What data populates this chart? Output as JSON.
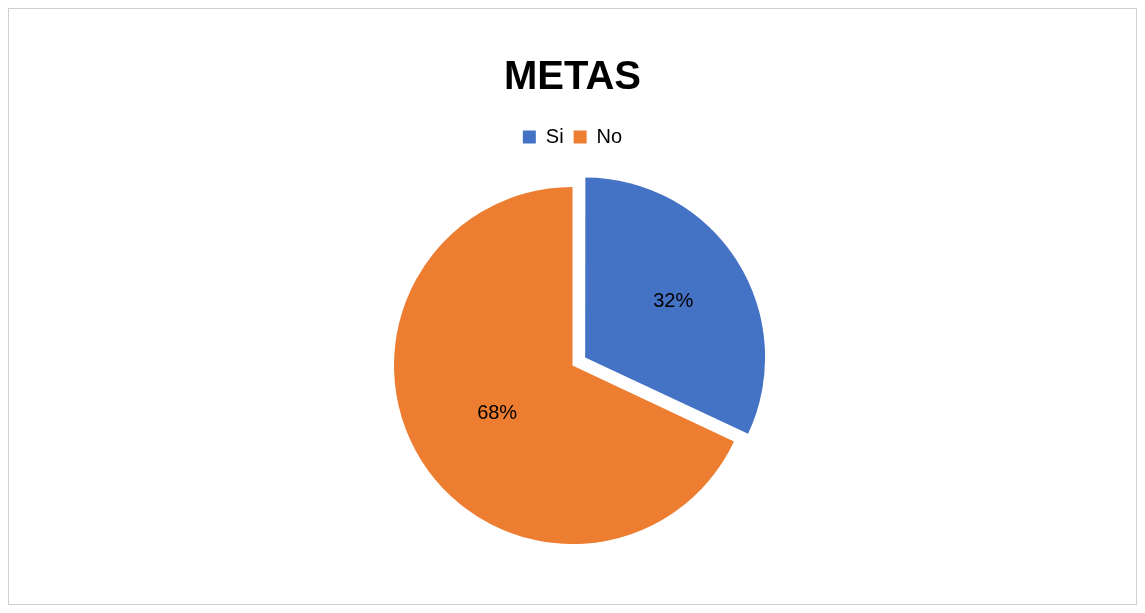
{
  "chart_data": {
    "type": "pie",
    "title": "METAS",
    "categories": [
      "Si",
      "No"
    ],
    "values": [
      32,
      68
    ],
    "colors": [
      "#4472c4",
      "#ed7d31"
    ],
    "value_labels": [
      "32%",
      "68%"
    ],
    "legend": "top"
  }
}
